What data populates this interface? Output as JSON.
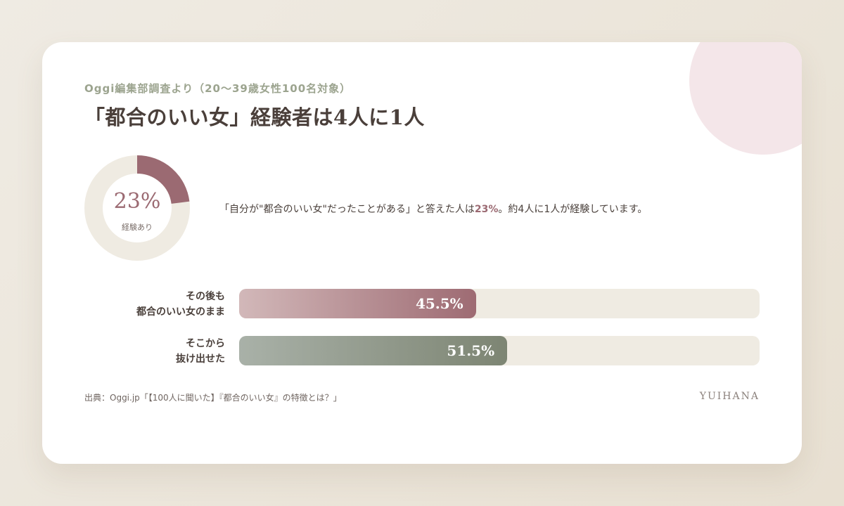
{
  "source_label": "Oggi編集部調査より（20〜39歳女性100名対象）",
  "headline": "「都合のいい女」経験者は4人に1人",
  "donut": {
    "value_label": "23%",
    "caption": "経験あり",
    "fraction": 0.23
  },
  "statement": {
    "before": "「自分が\"都合のいい女\"だったことがある」と答えた人は",
    "highlight": "23%",
    "after": "。約4人に1人が経験しています。"
  },
  "bars": [
    {
      "label_line1": "その後も",
      "label_line2": "都合のいい女のまま",
      "value_label": "45.5%"
    },
    {
      "label_line1": "そこから",
      "label_line2": "抜け出せた",
      "value_label": "51.5%"
    }
  ],
  "citation": "出典：Oggi.jp「【100人に聞いた】『都合のいい女』の特徴とは？」",
  "brand": "YUIHANA",
  "colors": {
    "rose": "#9b6a72",
    "sage": "#7d8573",
    "track": "#efebe2",
    "deco": "#f4e6e9"
  },
  "chart_data": [
    {
      "type": "pie",
      "categories": [
        "経験あり"
      ],
      "values": [
        23
      ],
      "unit": "%"
    },
    {
      "type": "bar",
      "orientation": "horizontal",
      "categories": [
        "その後も都合のいい女のまま",
        "そこから抜け出せた"
      ],
      "values": [
        45.5,
        51.5
      ],
      "unit": "%",
      "xlim": [
        0,
        100
      ]
    }
  ]
}
